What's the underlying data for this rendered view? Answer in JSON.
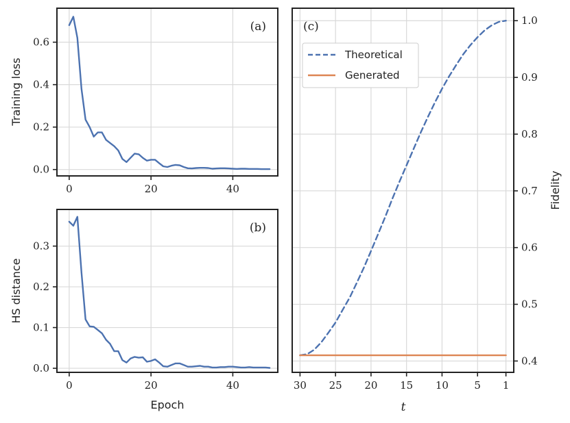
{
  "colors": {
    "blue": "#4c72b0",
    "orange": "#dd8452"
  },
  "chart_data": [
    {
      "type": "line",
      "panel": "(a)",
      "xlabel": "",
      "ylabel": "Training loss",
      "xlim": [
        -3,
        51
      ],
      "ylim": [
        -0.03,
        0.76
      ],
      "xticks": [
        0,
        20,
        40
      ],
      "yticks": [
        0.0,
        0.2,
        0.4,
        0.6
      ],
      "ytick_labels": [
        "0.0",
        "0.2",
        "0.4",
        "0.6"
      ],
      "grid": true,
      "series": [
        {
          "color": "#4c72b0",
          "x": [
            0,
            1,
            2,
            3,
            4,
            5,
            6,
            7,
            8,
            9,
            10,
            11,
            12,
            13,
            14,
            15,
            16,
            17,
            18,
            19,
            20,
            21,
            22,
            23,
            24,
            25,
            26,
            27,
            28,
            29,
            30,
            31,
            32,
            33,
            34,
            35,
            36,
            37,
            38,
            39,
            40,
            41,
            42,
            43,
            44,
            45,
            46,
            47,
            48,
            49
          ],
          "y": [
            0.68,
            0.72,
            0.62,
            0.38,
            0.235,
            0.2,
            0.155,
            0.175,
            0.175,
            0.14,
            0.125,
            0.11,
            0.09,
            0.05,
            0.035,
            0.055,
            0.075,
            0.072,
            0.055,
            0.042,
            0.046,
            0.046,
            0.03,
            0.015,
            0.012,
            0.018,
            0.022,
            0.02,
            0.012,
            0.006,
            0.005,
            0.007,
            0.008,
            0.008,
            0.007,
            0.004,
            0.005,
            0.006,
            0.006,
            0.005,
            0.004,
            0.003,
            0.004,
            0.004,
            0.003,
            0.003,
            0.003,
            0.002,
            0.002,
            0.002
          ]
        }
      ]
    },
    {
      "type": "line",
      "panel": "(b)",
      "xlabel": "Epoch",
      "ylabel": "HS distance",
      "xlim": [
        -3,
        51
      ],
      "ylim": [
        -0.01,
        0.39
      ],
      "xticks": [
        0,
        20,
        40
      ],
      "yticks": [
        0.0,
        0.1,
        0.2,
        0.3
      ],
      "ytick_labels": [
        "0.0",
        "0.1",
        "0.2",
        "0.3"
      ],
      "grid": true,
      "series": [
        {
          "color": "#4c72b0",
          "x": [
            0,
            1,
            2,
            3,
            4,
            5,
            6,
            7,
            8,
            9,
            10,
            11,
            12,
            13,
            14,
            15,
            16,
            17,
            18,
            19,
            20,
            21,
            22,
            23,
            24,
            25,
            26,
            27,
            28,
            29,
            30,
            31,
            32,
            33,
            34,
            35,
            36,
            37,
            38,
            39,
            40,
            41,
            42,
            43,
            44,
            45,
            46,
            47,
            48,
            49
          ],
          "y": [
            0.36,
            0.35,
            0.372,
            0.235,
            0.12,
            0.103,
            0.102,
            0.094,
            0.086,
            0.07,
            0.06,
            0.042,
            0.042,
            0.02,
            0.014,
            0.024,
            0.028,
            0.026,
            0.027,
            0.016,
            0.018,
            0.022,
            0.014,
            0.005,
            0.004,
            0.008,
            0.012,
            0.012,
            0.008,
            0.004,
            0.004,
            0.005,
            0.006,
            0.004,
            0.004,
            0.002,
            0.002,
            0.003,
            0.003,
            0.004,
            0.004,
            0.003,
            0.002,
            0.002,
            0.003,
            0.002,
            0.002,
            0.002,
            0.002,
            0.001
          ]
        }
      ]
    },
    {
      "type": "line",
      "panel": "(c)",
      "xlabel": "t",
      "ylabel": "Fidelity",
      "xlim": [
        31.1,
        -0.1
      ],
      "ylim": [
        0.38,
        1.022
      ],
      "xticks": [
        30,
        25,
        20,
        15,
        10,
        5,
        1
      ],
      "yticks": [
        0.4,
        0.5,
        0.6,
        0.7,
        0.8,
        0.9,
        1.0
      ],
      "ytick_labels": [
        "0.4",
        "0.5",
        "0.6",
        "0.7",
        "0.8",
        "0.9",
        "1.0"
      ],
      "yaxis_side": "right",
      "grid": true,
      "legend": {
        "placement": "upper-left",
        "entries": [
          "Theoretical",
          "Generated"
        ]
      },
      "series": [
        {
          "name": "Theoretical",
          "color": "#4c72b0",
          "dash": true,
          "x": [
            30,
            29,
            28,
            27,
            26,
            25,
            24,
            23,
            22,
            21,
            20,
            19,
            18,
            17,
            16,
            15,
            14,
            13,
            12,
            11,
            10,
            9,
            8,
            7,
            6,
            5,
            4,
            3,
            2,
            1
          ],
          "y": [
            0.41,
            0.412,
            0.42,
            0.433,
            0.45,
            0.468,
            0.49,
            0.512,
            0.538,
            0.565,
            0.594,
            0.624,
            0.654,
            0.686,
            0.716,
            0.745,
            0.774,
            0.803,
            0.83,
            0.856,
            0.88,
            0.902,
            0.922,
            0.941,
            0.957,
            0.971,
            0.983,
            0.992,
            0.998,
            1.0
          ]
        },
        {
          "name": "Generated",
          "color": "#dd8452",
          "dash": false,
          "x": [
            30,
            1
          ],
          "y": [
            0.41,
            0.41
          ]
        }
      ]
    }
  ]
}
